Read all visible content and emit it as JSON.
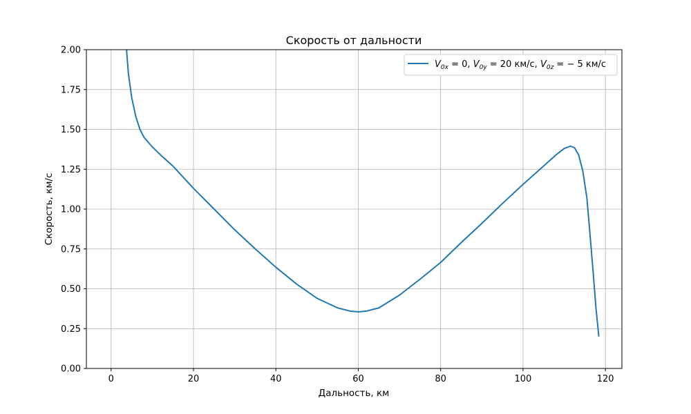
{
  "chart_data": {
    "type": "line",
    "title": "Скорость от дальности",
    "xlabel": "Дальность, км",
    "ylabel": "Скорость, км/с",
    "xlim": [
      -6,
      124
    ],
    "ylim": [
      0,
      2
    ],
    "xticks": [
      0,
      20,
      40,
      60,
      80,
      100,
      120
    ],
    "xtick_labels": [
      "0",
      "20",
      "40",
      "60",
      "80",
      "100",
      "120"
    ],
    "yticks": [
      0,
      0.25,
      0.5,
      0.75,
      1.0,
      1.25,
      1.5,
      1.75,
      2.0
    ],
    "ytick_labels": [
      "0.00",
      "0.25",
      "0.50",
      "0.75",
      "1.00",
      "1.25",
      "1.50",
      "1.75",
      "2.00"
    ],
    "grid": true,
    "legend_position": "upper right",
    "series": [
      {
        "name": "V0x = 0, V0y = 20 км/с, V0z = −5 км/с",
        "color": "#1f77b4",
        "x": [
          3.6,
          4.2,
          5.0,
          6.0,
          7.0,
          8.0,
          9.0,
          10.0,
          12.0,
          15.0,
          20.0,
          25.0,
          30.0,
          35.0,
          40.0,
          45.0,
          50.0,
          55.0,
          58.0,
          60.0,
          62.0,
          65.0,
          70.0,
          75.0,
          80.0,
          85.0,
          90.0,
          95.0,
          100.0,
          105.0,
          108.0,
          110.0,
          111.5,
          112.5,
          113.5,
          114.5,
          115.5,
          116.2,
          117.0,
          117.7,
          118.4
        ],
        "y": [
          2.05,
          1.85,
          1.7,
          1.58,
          1.5,
          1.45,
          1.42,
          1.39,
          1.34,
          1.27,
          1.13,
          1.0,
          0.87,
          0.75,
          0.635,
          0.53,
          0.44,
          0.38,
          0.36,
          0.355,
          0.36,
          0.38,
          0.46,
          0.56,
          0.665,
          0.79,
          0.91,
          1.035,
          1.155,
          1.27,
          1.34,
          1.38,
          1.395,
          1.385,
          1.34,
          1.24,
          1.07,
          0.86,
          0.61,
          0.38,
          0.2
        ]
      }
    ]
  },
  "legend": {
    "V_sub1": "0x",
    "V_sub2": "0y",
    "V_sub3": "0z",
    "text1": " = 0, ",
    "text2": " = 20 км/с, ",
    "text3": " = − 5 км/с"
  }
}
